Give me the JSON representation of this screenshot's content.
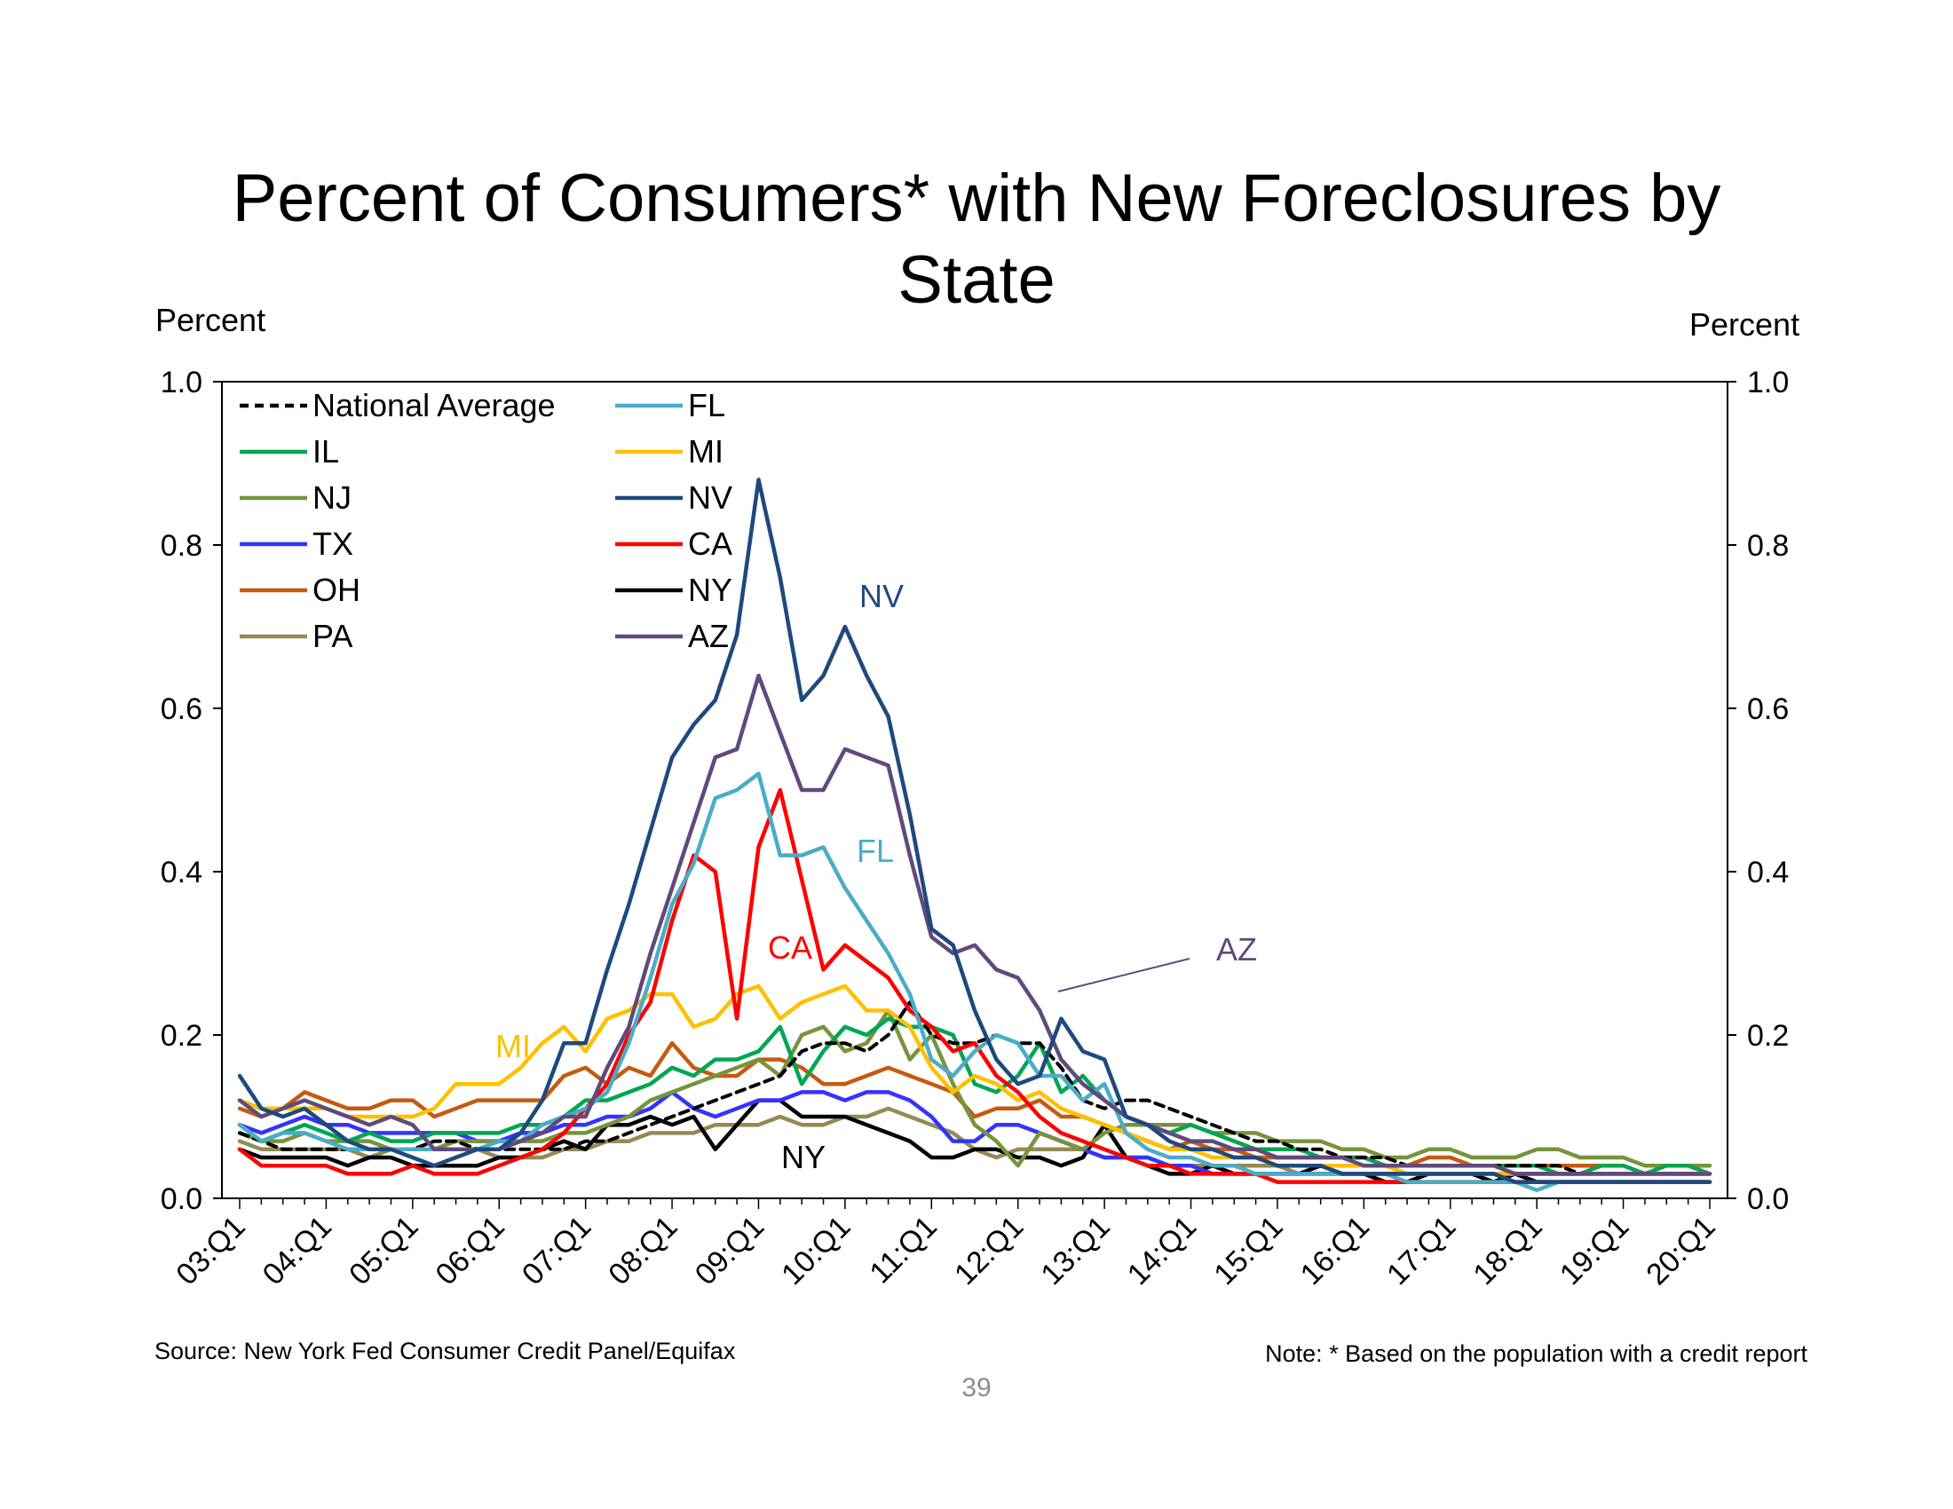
{
  "page": {
    "number": "39"
  },
  "chart_data": {
    "type": "line",
    "title_lines": [
      "Percent of Consumers* with New Foreclosures by",
      "State"
    ],
    "ylabel_left": "Percent",
    "ylabel_right": "Percent",
    "ylim": [
      0,
      1.0
    ],
    "yticks": [
      "0.0",
      "0.2",
      "0.4",
      "0.6",
      "0.8",
      "1.0"
    ],
    "ytick_values": [
      0,
      0.2,
      0.4,
      0.6,
      0.8,
      1.0
    ],
    "x_start": "03:Q1",
    "x_end": "20:Q1",
    "n_quarters": 69,
    "x_ticks": [
      "03:Q1",
      "04:Q1",
      "05:Q1",
      "06:Q1",
      "07:Q1",
      "08:Q1",
      "09:Q1",
      "10:Q1",
      "11:Q1",
      "12:Q1",
      "13:Q1",
      "14:Q1",
      "15:Q1",
      "16:Q1",
      "17:Q1",
      "18:Q1",
      "19:Q1",
      "20:Q1"
    ],
    "source": "Source: New York Fed Consumer Credit Panel/Equifax",
    "note": "Note: * Based on the population with a credit report",
    "series": [
      {
        "name": "National Average",
        "color": "#000000",
        "dashed": true,
        "values": [
          0.08,
          0.07,
          0.06,
          0.06,
          0.06,
          0.06,
          0.06,
          0.06,
          0.06,
          0.07,
          0.07,
          0.06,
          0.06,
          0.06,
          0.06,
          0.06,
          0.07,
          0.07,
          0.08,
          0.09,
          0.1,
          0.11,
          0.12,
          0.13,
          0.14,
          0.15,
          0.18,
          0.19,
          0.19,
          0.18,
          0.2,
          0.24,
          0.2,
          0.19,
          0.19,
          0.2,
          0.19,
          0.19,
          0.16,
          0.12,
          0.11,
          0.12,
          0.12,
          0.11,
          0.1,
          0.09,
          0.08,
          0.07,
          0.07,
          0.06,
          0.06,
          0.05,
          0.05,
          0.05,
          0.04,
          0.04,
          0.04,
          0.04,
          0.04,
          0.04,
          0.04,
          0.04,
          0.03,
          0.03,
          0.03,
          0.03,
          0.03,
          0.03,
          0.03
        ]
      },
      {
        "name": "IL",
        "color": "#00a651",
        "values": [
          0.09,
          0.07,
          0.08,
          0.09,
          0.08,
          0.07,
          0.08,
          0.07,
          0.07,
          0.08,
          0.08,
          0.08,
          0.08,
          0.09,
          0.09,
          0.1,
          0.12,
          0.12,
          0.13,
          0.14,
          0.16,
          0.15,
          0.17,
          0.17,
          0.18,
          0.21,
          0.14,
          0.18,
          0.21,
          0.2,
          0.22,
          0.21,
          0.21,
          0.2,
          0.14,
          0.13,
          0.15,
          0.19,
          0.13,
          0.15,
          0.12,
          0.1,
          0.09,
          0.08,
          0.09,
          0.08,
          0.07,
          0.06,
          0.06,
          0.06,
          0.05,
          0.05,
          0.05,
          0.04,
          0.04,
          0.04,
          0.04,
          0.04,
          0.04,
          0.04,
          0.04,
          0.03,
          0.03,
          0.04,
          0.04,
          0.03,
          0.04,
          0.04,
          0.03
        ]
      },
      {
        "name": "NJ",
        "color": "#77933c",
        "values": [
          0.08,
          0.07,
          0.07,
          0.08,
          0.07,
          0.07,
          0.07,
          0.06,
          0.06,
          0.06,
          0.07,
          0.07,
          0.07,
          0.07,
          0.07,
          0.08,
          0.08,
          0.09,
          0.1,
          0.12,
          0.13,
          0.14,
          0.15,
          0.16,
          0.17,
          0.15,
          0.2,
          0.21,
          0.18,
          0.19,
          0.23,
          0.17,
          0.2,
          0.14,
          0.09,
          0.07,
          0.04,
          0.08,
          0.07,
          0.06,
          0.08,
          0.09,
          0.09,
          0.09,
          0.09,
          0.08,
          0.08,
          0.08,
          0.07,
          0.07,
          0.07,
          0.06,
          0.06,
          0.05,
          0.05,
          0.06,
          0.06,
          0.05,
          0.05,
          0.05,
          0.06,
          0.06,
          0.05,
          0.05,
          0.05,
          0.04,
          0.04,
          0.04,
          0.04
        ]
      },
      {
        "name": "TX",
        "color": "#3333ff",
        "values": [
          0.09,
          0.08,
          0.09,
          0.1,
          0.09,
          0.09,
          0.08,
          0.08,
          0.08,
          0.08,
          0.08,
          0.07,
          0.07,
          0.08,
          0.08,
          0.09,
          0.09,
          0.1,
          0.1,
          0.11,
          0.13,
          0.11,
          0.1,
          0.11,
          0.12,
          0.12,
          0.13,
          0.13,
          0.12,
          0.13,
          0.13,
          0.12,
          0.1,
          0.07,
          0.07,
          0.09,
          0.09,
          0.08,
          0.07,
          0.06,
          0.05,
          0.05,
          0.05,
          0.04,
          0.04,
          0.03,
          0.03,
          0.03,
          0.03,
          0.03,
          0.03,
          0.03,
          0.03,
          0.03,
          0.03,
          0.03,
          0.03,
          0.03,
          0.03,
          0.03,
          0.03,
          0.03,
          0.03,
          0.03,
          0.03,
          0.03,
          0.03,
          0.03,
          0.03
        ]
      },
      {
        "name": "OH",
        "color": "#c55a11",
        "values": [
          0.11,
          0.1,
          0.11,
          0.13,
          0.12,
          0.11,
          0.11,
          0.12,
          0.12,
          0.1,
          0.11,
          0.12,
          0.12,
          0.12,
          0.12,
          0.15,
          0.16,
          0.14,
          0.16,
          0.15,
          0.19,
          0.16,
          0.15,
          0.15,
          0.17,
          0.17,
          0.16,
          0.14,
          0.14,
          0.15,
          0.16,
          0.15,
          0.14,
          0.13,
          0.1,
          0.11,
          0.11,
          0.12,
          0.1,
          0.1,
          0.09,
          0.08,
          0.07,
          0.06,
          0.07,
          0.06,
          0.06,
          0.05,
          0.05,
          0.05,
          0.05,
          0.05,
          0.05,
          0.04,
          0.04,
          0.05,
          0.05,
          0.04,
          0.04,
          0.04,
          0.04,
          0.04,
          0.04,
          0.04,
          0.04,
          0.03,
          0.03,
          0.03,
          0.03
        ]
      },
      {
        "name": "PA",
        "color": "#948a54",
        "values": [
          0.07,
          0.06,
          0.06,
          0.06,
          0.06,
          0.06,
          0.05,
          0.06,
          0.06,
          0.06,
          0.06,
          0.06,
          0.05,
          0.05,
          0.05,
          0.06,
          0.06,
          0.07,
          0.07,
          0.08,
          0.08,
          0.08,
          0.09,
          0.09,
          0.09,
          0.1,
          0.09,
          0.09,
          0.1,
          0.1,
          0.11,
          0.1,
          0.09,
          0.08,
          0.06,
          0.05,
          0.06,
          0.06,
          0.06,
          0.06,
          0.05,
          0.05,
          0.05,
          0.04,
          0.04,
          0.04,
          0.04,
          0.04,
          0.04,
          0.03,
          0.03,
          0.03,
          0.03,
          0.03,
          0.03,
          0.03,
          0.03,
          0.03,
          0.03,
          0.03,
          0.03,
          0.03,
          0.03,
          0.03,
          0.03,
          0.03,
          0.03,
          0.03,
          0.03
        ]
      },
      {
        "name": "FL",
        "color": "#4bacc6",
        "values": [
          0.09,
          0.07,
          0.08,
          0.08,
          0.07,
          0.06,
          0.06,
          0.06,
          0.06,
          0.06,
          0.06,
          0.06,
          0.07,
          0.07,
          0.09,
          0.1,
          0.11,
          0.13,
          0.19,
          0.27,
          0.36,
          0.41,
          0.49,
          0.5,
          0.52,
          0.42,
          0.42,
          0.43,
          0.38,
          0.34,
          0.3,
          0.25,
          0.17,
          0.15,
          0.18,
          0.2,
          0.19,
          0.15,
          0.15,
          0.12,
          0.14,
          0.08,
          0.06,
          0.05,
          0.05,
          0.04,
          0.04,
          0.03,
          0.03,
          0.03,
          0.03,
          0.03,
          0.03,
          0.03,
          0.02,
          0.02,
          0.02,
          0.02,
          0.02,
          0.02,
          0.01,
          0.02,
          0.02,
          0.02,
          0.02,
          0.02,
          0.02,
          0.02,
          0.02
        ]
      },
      {
        "name": "MI",
        "color": "#ffc000",
        "values": [
          0.12,
          0.11,
          0.11,
          0.11,
          0.11,
          0.1,
          0.1,
          0.1,
          0.1,
          0.11,
          0.14,
          0.14,
          0.14,
          0.16,
          0.19,
          0.21,
          0.18,
          0.22,
          0.23,
          0.25,
          0.25,
          0.21,
          0.22,
          0.25,
          0.26,
          0.22,
          0.24,
          0.25,
          0.26,
          0.23,
          0.23,
          0.21,
          0.16,
          0.13,
          0.15,
          0.14,
          0.12,
          0.13,
          0.11,
          0.1,
          0.09,
          0.08,
          0.07,
          0.06,
          0.06,
          0.05,
          0.05,
          0.05,
          0.04,
          0.04,
          0.04,
          0.04,
          0.04,
          0.04,
          0.03,
          0.03,
          0.03,
          0.03,
          0.03,
          0.03,
          0.03,
          0.03,
          0.03,
          0.03,
          0.03,
          0.03,
          0.03,
          0.03,
          0.03
        ]
      },
      {
        "name": "NV",
        "color": "#1f497d",
        "values": [
          0.15,
          0.11,
          0.1,
          0.11,
          0.09,
          0.07,
          0.06,
          0.06,
          0.05,
          0.04,
          0.05,
          0.06,
          0.06,
          0.08,
          0.12,
          0.19,
          0.19,
          0.28,
          0.36,
          0.45,
          0.54,
          0.58,
          0.61,
          0.69,
          0.88,
          0.76,
          0.61,
          0.64,
          0.7,
          0.64,
          0.59,
          0.47,
          0.33,
          0.31,
          0.23,
          0.17,
          0.14,
          0.15,
          0.22,
          0.18,
          0.17,
          0.1,
          0.09,
          0.07,
          0.06,
          0.06,
          0.05,
          0.05,
          0.04,
          0.04,
          0.04,
          0.03,
          0.03,
          0.03,
          0.03,
          0.03,
          0.03,
          0.03,
          0.03,
          0.02,
          0.02,
          0.02,
          0.02,
          0.02,
          0.02,
          0.02,
          0.02,
          0.02,
          0.02
        ]
      },
      {
        "name": "CA",
        "color": "#ff0000",
        "values": [
          0.06,
          0.04,
          0.04,
          0.04,
          0.04,
          0.03,
          0.03,
          0.03,
          0.04,
          0.03,
          0.03,
          0.03,
          0.04,
          0.05,
          0.06,
          0.08,
          0.11,
          0.14,
          0.2,
          0.24,
          0.34,
          0.42,
          0.4,
          0.22,
          0.43,
          0.5,
          0.39,
          0.28,
          0.31,
          0.29,
          0.27,
          0.23,
          0.21,
          0.18,
          0.19,
          0.15,
          0.13,
          0.1,
          0.08,
          0.07,
          0.06,
          0.05,
          0.04,
          0.04,
          0.03,
          0.03,
          0.03,
          0.03,
          0.02,
          0.02,
          0.02,
          0.02,
          0.02,
          0.02,
          0.02,
          0.02,
          0.02,
          0.02,
          0.02,
          0.02,
          0.02,
          0.02,
          0.02,
          0.02,
          0.02,
          0.02,
          0.02,
          0.02,
          0.02
        ]
      },
      {
        "name": "NY",
        "color": "#000000",
        "values": [
          0.06,
          0.05,
          0.05,
          0.05,
          0.05,
          0.04,
          0.05,
          0.05,
          0.04,
          0.04,
          0.04,
          0.04,
          0.05,
          0.05,
          0.06,
          0.07,
          0.06,
          0.09,
          0.09,
          0.1,
          0.09,
          0.1,
          0.06,
          0.09,
          0.12,
          0.12,
          0.1,
          0.1,
          0.1,
          0.09,
          0.08,
          0.07,
          0.05,
          0.05,
          0.06,
          0.06,
          0.05,
          0.05,
          0.04,
          0.05,
          0.09,
          0.05,
          0.04,
          0.03,
          0.03,
          0.04,
          0.03,
          0.03,
          0.03,
          0.03,
          0.04,
          0.03,
          0.03,
          0.02,
          0.02,
          0.03,
          0.03,
          0.03,
          0.02,
          0.03,
          0.02,
          0.02,
          0.02,
          0.02,
          0.02,
          0.02,
          0.02,
          0.02,
          0.02
        ]
      },
      {
        "name": "AZ",
        "color": "#604a7b",
        "values": [
          0.12,
          0.1,
          0.11,
          0.12,
          0.11,
          0.1,
          0.09,
          0.1,
          0.09,
          0.06,
          0.06,
          0.06,
          0.06,
          0.07,
          0.08,
          0.1,
          0.1,
          0.16,
          0.21,
          0.3,
          0.38,
          0.46,
          0.54,
          0.55,
          0.64,
          0.57,
          0.5,
          0.5,
          0.55,
          0.54,
          0.53,
          0.42,
          0.32,
          0.3,
          0.31,
          0.28,
          0.27,
          0.23,
          0.17,
          0.14,
          0.12,
          0.1,
          0.09,
          0.08,
          0.07,
          0.07,
          0.06,
          0.06,
          0.05,
          0.05,
          0.05,
          0.05,
          0.04,
          0.04,
          0.04,
          0.04,
          0.04,
          0.04,
          0.04,
          0.03,
          0.03,
          0.03,
          0.03,
          0.03,
          0.03,
          0.03,
          0.03,
          0.03,
          0.03
        ]
      }
    ],
    "annotations": [
      {
        "text": "NV",
        "series": "NV",
        "color": "#1f497d"
      },
      {
        "text": "FL",
        "series": "FL",
        "color": "#4bacc6"
      },
      {
        "text": "CA",
        "series": "CA",
        "color": "#ff0000"
      },
      {
        "text": "MI",
        "series": "MI",
        "color": "#ffc000"
      },
      {
        "text": "NY",
        "series": "NY",
        "color": "#000000"
      },
      {
        "text": "AZ",
        "series": "AZ",
        "color": "#604a7b"
      }
    ]
  }
}
